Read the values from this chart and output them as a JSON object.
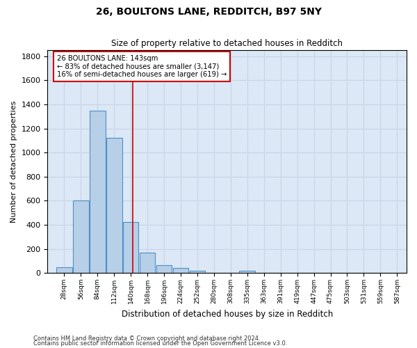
{
  "title": "26, BOULTONS LANE, REDDITCH, B97 5NY",
  "subtitle": "Size of property relative to detached houses in Redditch",
  "xlabel": "Distribution of detached houses by size in Redditch",
  "ylabel": "Number of detached properties",
  "footnote1": "Contains HM Land Registry data © Crown copyright and database right 2024.",
  "footnote2": "Contains public sector information licensed under the Open Government Licence v3.0.",
  "bin_labels": [
    "28sqm",
    "56sqm",
    "84sqm",
    "112sqm",
    "140sqm",
    "168sqm",
    "196sqm",
    "224sqm",
    "252sqm",
    "280sqm",
    "308sqm",
    "335sqm",
    "363sqm",
    "391sqm",
    "419sqm",
    "447sqm",
    "475sqm",
    "503sqm",
    "531sqm",
    "559sqm",
    "587sqm"
  ],
  "bar_values": [
    50,
    600,
    1350,
    1120,
    420,
    170,
    65,
    40,
    20,
    0,
    0,
    20,
    0,
    0,
    0,
    0,
    0,
    0,
    0,
    0,
    0
  ],
  "bar_color": "#b8cfe8",
  "bar_edge_color": "#4a90c8",
  "property_value": 143,
  "annotation_line1": "26 BOULTONS LANE: 143sqm",
  "annotation_line2": "← 83% of detached houses are smaller (3,147)",
  "annotation_line3": "16% of semi-detached houses are larger (619) →",
  "red_line_color": "#cc0000",
  "annotation_box_color": "#ffffff",
  "annotation_box_edge": "#cc0000",
  "grid_color": "#c8d4e8",
  "bg_color": "#dce8f5",
  "ylim": [
    0,
    1850
  ],
  "yticks": [
    0,
    200,
    400,
    600,
    800,
    1000,
    1200,
    1400,
    1600,
    1800
  ],
  "bin_width": 28
}
